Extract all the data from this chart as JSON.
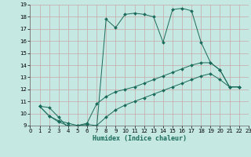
{
  "xlabel": "Humidex (Indice chaleur)",
  "xlim": [
    0,
    23
  ],
  "ylim": [
    9,
    19
  ],
  "xticks": [
    0,
    1,
    2,
    3,
    4,
    5,
    6,
    7,
    8,
    9,
    10,
    11,
    12,
    13,
    14,
    15,
    16,
    17,
    18,
    19,
    20,
    21,
    22,
    23
  ],
  "yticks": [
    9,
    10,
    11,
    12,
    13,
    14,
    15,
    16,
    17,
    18,
    19
  ],
  "bg_color": "#c5e8e2",
  "grid_color": "#c8a8a8",
  "line_color": "#1a6b5a",
  "lines": [
    {
      "x": [
        1,
        2,
        3,
        4,
        5,
        6,
        7,
        8,
        9,
        10,
        11,
        12,
        13,
        14,
        15,
        16,
        17,
        18,
        19,
        20,
        21,
        22
      ],
      "y": [
        10.6,
        10.5,
        9.7,
        8.8,
        9.0,
        9.0,
        8.7,
        17.8,
        17.1,
        18.2,
        18.3,
        18.2,
        18.0,
        15.9,
        18.6,
        18.7,
        18.5,
        15.9,
        14.2,
        13.6,
        12.2,
        12.2
      ]
    },
    {
      "x": [
        1,
        2,
        3,
        4,
        5,
        6,
        7,
        8,
        9,
        10,
        11,
        12,
        13,
        14,
        15,
        16,
        17,
        18,
        19,
        20,
        21,
        22
      ],
      "y": [
        10.6,
        9.8,
        9.4,
        9.2,
        9.0,
        9.2,
        10.8,
        11.4,
        11.8,
        12.0,
        12.2,
        12.5,
        12.8,
        13.1,
        13.4,
        13.7,
        14.0,
        14.2,
        14.2,
        13.6,
        12.2,
        12.2
      ]
    },
    {
      "x": [
        1,
        2,
        3,
        4,
        5,
        6,
        7,
        8,
        9,
        10,
        11,
        12,
        13,
        14,
        15,
        16,
        17,
        18,
        19,
        20,
        21,
        22
      ],
      "y": [
        10.6,
        9.8,
        9.3,
        9.0,
        9.0,
        9.1,
        9.0,
        9.7,
        10.3,
        10.7,
        11.0,
        11.3,
        11.6,
        11.9,
        12.2,
        12.5,
        12.8,
        13.1,
        13.3,
        12.8,
        12.2,
        12.2
      ]
    }
  ]
}
